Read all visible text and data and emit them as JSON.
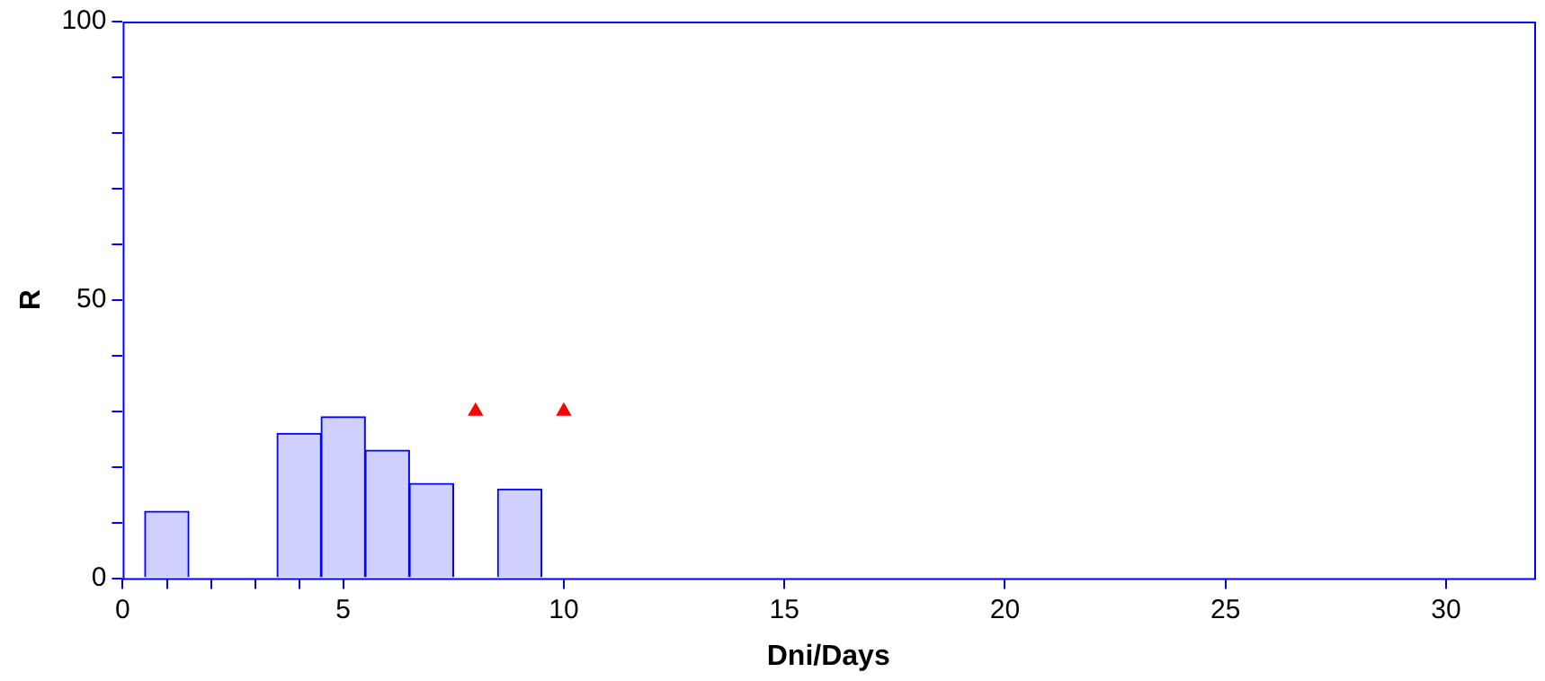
{
  "chart_data": {
    "type": "bar",
    "xlabel": "Dni/Days",
    "ylabel": "R",
    "series": [
      {
        "color": "#d0d0ff",
        "x": [
          1,
          4,
          5,
          6,
          7,
          9
        ],
        "values": [
          12,
          26,
          29,
          23,
          17,
          16
        ]
      },
      {
        "type": "scatter",
        "color": "#ff0000",
        "marker": "triangle",
        "x": [
          8,
          10
        ],
        "values": [
          30,
          30
        ]
      }
    ],
    "xlim": [
      0,
      32
    ],
    "xticks": [
      0,
      {
        "value": 1,
        "label": null
      },
      {
        "value": 2,
        "label": null
      },
      {
        "value": 3,
        "label": null
      },
      {
        "value": 4,
        "label": null
      },
      5,
      10,
      15,
      20,
      25,
      30
    ],
    "ylim": [
      0,
      100
    ],
    "yticks": [
      0,
      {
        "value": 10,
        "label": null
      },
      {
        "value": 20,
        "label": null
      },
      {
        "value": 30,
        "label": null
      },
      {
        "value": 40,
        "label": null
      },
      50,
      {
        "value": 60,
        "label": null
      },
      {
        "value": 70,
        "label": null
      },
      {
        "value": 80,
        "label": null
      },
      {
        "value": 90,
        "label": null
      },
      100
    ],
    "grid": false,
    "legend": false
  }
}
